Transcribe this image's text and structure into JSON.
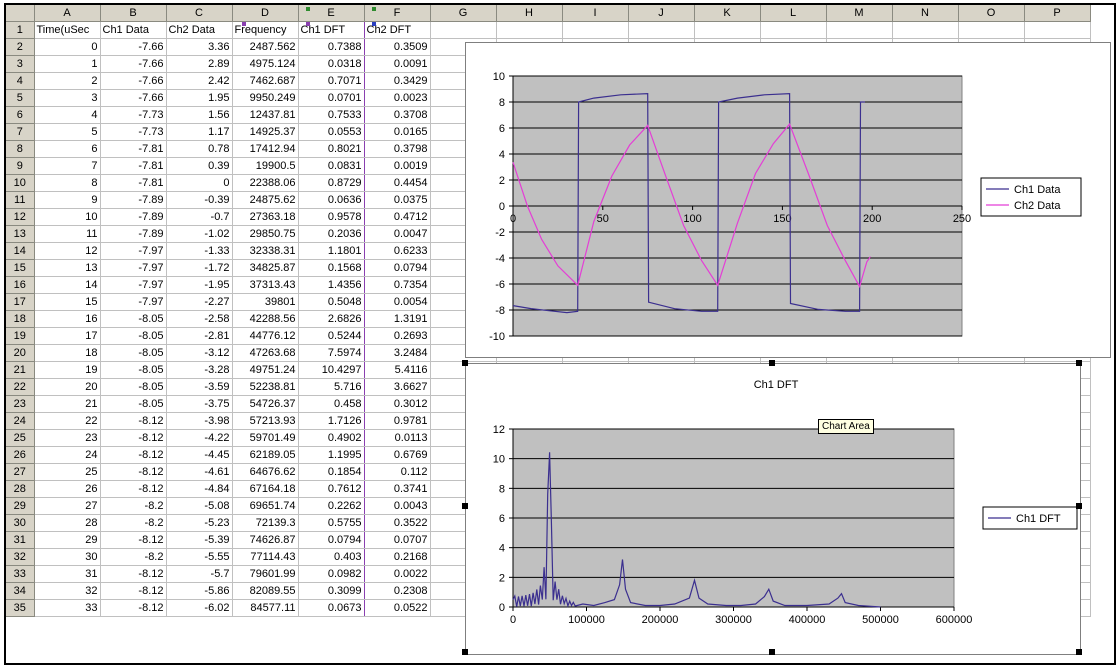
{
  "columns": [
    "A",
    "B",
    "C",
    "D",
    "E",
    "F",
    "G",
    "H",
    "I",
    "J",
    "K",
    "L",
    "M",
    "N",
    "O",
    "P"
  ],
  "header_row": [
    "Time(uSec",
    "Ch1 Data",
    "Ch2 Data",
    "Frequency",
    "Ch1 DFT",
    "Ch2 DFT"
  ],
  "rows": [
    [
      "2",
      "0",
      "-7.66",
      "3.36",
      "2487.562",
      "0.7388",
      "0.3509"
    ],
    [
      "3",
      "1",
      "-7.66",
      "2.89",
      "4975.124",
      "0.0318",
      "0.0091"
    ],
    [
      "4",
      "2",
      "-7.66",
      "2.42",
      "7462.687",
      "0.7071",
      "0.3429"
    ],
    [
      "5",
      "3",
      "-7.66",
      "1.95",
      "9950.249",
      "0.0701",
      "0.0023"
    ],
    [
      "6",
      "4",
      "-7.73",
      "1.56",
      "12437.81",
      "0.7533",
      "0.3708"
    ],
    [
      "7",
      "5",
      "-7.73",
      "1.17",
      "14925.37",
      "0.0553",
      "0.0165"
    ],
    [
      "8",
      "6",
      "-7.81",
      "0.78",
      "17412.94",
      "0.8021",
      "0.3798"
    ],
    [
      "9",
      "7",
      "-7.81",
      "0.39",
      "19900.5",
      "0.0831",
      "0.0019"
    ],
    [
      "10",
      "8",
      "-7.81",
      "0",
      "22388.06",
      "0.8729",
      "0.4454"
    ],
    [
      "11",
      "9",
      "-7.89",
      "-0.39",
      "24875.62",
      "0.0636",
      "0.0375"
    ],
    [
      "12",
      "10",
      "-7.89",
      "-0.7",
      "27363.18",
      "0.9578",
      "0.4712"
    ],
    [
      "13",
      "11",
      "-7.89",
      "-1.02",
      "29850.75",
      "0.2036",
      "0.0047"
    ],
    [
      "14",
      "12",
      "-7.97",
      "-1.33",
      "32338.31",
      "1.1801",
      "0.6233"
    ],
    [
      "15",
      "13",
      "-7.97",
      "-1.72",
      "34825.87",
      "0.1568",
      "0.0794"
    ],
    [
      "16",
      "14",
      "-7.97",
      "-1.95",
      "37313.43",
      "1.4356",
      "0.7354"
    ],
    [
      "17",
      "15",
      "-7.97",
      "-2.27",
      "39801",
      "0.5048",
      "0.0054"
    ],
    [
      "18",
      "16",
      "-8.05",
      "-2.58",
      "42288.56",
      "2.6826",
      "1.3191"
    ],
    [
      "19",
      "17",
      "-8.05",
      "-2.81",
      "44776.12",
      "0.5244",
      "0.2693"
    ],
    [
      "20",
      "18",
      "-8.05",
      "-3.12",
      "47263.68",
      "7.5974",
      "3.2484"
    ],
    [
      "21",
      "19",
      "-8.05",
      "-3.28",
      "49751.24",
      "10.4297",
      "5.4116"
    ],
    [
      "22",
      "20",
      "-8.05",
      "-3.59",
      "52238.81",
      "5.716",
      "3.6627"
    ],
    [
      "23",
      "21",
      "-8.05",
      "-3.75",
      "54726.37",
      "0.458",
      "0.3012"
    ],
    [
      "24",
      "22",
      "-8.12",
      "-3.98",
      "57213.93",
      "1.7126",
      "0.9781"
    ],
    [
      "25",
      "23",
      "-8.12",
      "-4.22",
      "59701.49",
      "0.4902",
      "0.0113"
    ],
    [
      "26",
      "24",
      "-8.12",
      "-4.45",
      "62189.05",
      "1.1995",
      "0.6769"
    ],
    [
      "27",
      "25",
      "-8.12",
      "-4.61",
      "64676.62",
      "0.1854",
      "0.112"
    ],
    [
      "28",
      "26",
      "-8.12",
      "-4.84",
      "67164.18",
      "0.7612",
      "0.3741"
    ],
    [
      "29",
      "27",
      "-8.2",
      "-5.08",
      "69651.74",
      "0.2262",
      "0.0043"
    ],
    [
      "30",
      "28",
      "-8.2",
      "-5.23",
      "72139.3",
      "0.5755",
      "0.3522"
    ],
    [
      "31",
      "29",
      "-8.12",
      "-5.39",
      "74626.87",
      "0.0794",
      "0.0707"
    ],
    [
      "32",
      "30",
      "-8.2",
      "-5.55",
      "77114.43",
      "0.403",
      "0.2168"
    ],
    [
      "33",
      "31",
      "-8.12",
      "-5.7",
      "79601.99",
      "0.0982",
      "0.0022"
    ],
    [
      "34",
      "32",
      "-8.12",
      "-5.86",
      "82089.55",
      "0.3099",
      "0.2308"
    ],
    [
      "35",
      "33",
      "-8.12",
      "-6.02",
      "84577.11",
      "0.0673",
      "0.0522"
    ]
  ],
  "chart_data": [
    {
      "type": "line",
      "title": "",
      "xlim": [
        0,
        250
      ],
      "ylim": [
        -10,
        10
      ],
      "x_ticks": [
        "0",
        "50",
        "100",
        "150",
        "200",
        "250"
      ],
      "y_ticks": [
        "10",
        "8",
        "6",
        "4",
        "2",
        "0",
        "-2",
        "-4",
        "-6",
        "-8",
        "-10"
      ],
      "legend": "right",
      "series": [
        {
          "name": "Ch1 Data",
          "color": "#3b2f8f",
          "points": [
            [
              0,
              -7.66
            ],
            [
              10,
              -7.89
            ],
            [
              20,
              -8.05
            ],
            [
              30,
              -8.2
            ],
            [
              36,
              -8.1
            ],
            [
              36.5,
              8.0
            ],
            [
              45,
              8.3
            ],
            [
              60,
              8.55
            ],
            [
              75,
              8.65
            ],
            [
              75.5,
              -7.4
            ],
            [
              90,
              -7.9
            ],
            [
              105,
              -8.1
            ],
            [
              114,
              -8.1
            ],
            [
              114.5,
              8.0
            ],
            [
              125,
              8.3
            ],
            [
              140,
              8.55
            ],
            [
              154,
              8.65
            ],
            [
              154.5,
              -7.5
            ],
            [
              170,
              -7.95
            ],
            [
              185,
              -8.1
            ],
            [
              193,
              -8.1
            ],
            [
              193.5,
              8.0
            ],
            [
              196,
              8.0
            ]
          ]
        },
        {
          "name": "Ch2 Data",
          "color": "#e43ed6",
          "points": [
            [
              0,
              3.36
            ],
            [
              8,
              0
            ],
            [
              16,
              -2.58
            ],
            [
              25,
              -4.61
            ],
            [
              36,
              -6.1
            ],
            [
              45,
              -1.2
            ],
            [
              55,
              2.3
            ],
            [
              65,
              4.7
            ],
            [
              75,
              6.2
            ],
            [
              85,
              2.3
            ],
            [
              95,
              -1.5
            ],
            [
              105,
              -4.2
            ],
            [
              114,
              -6.1
            ],
            [
              125,
              -1.3
            ],
            [
              135,
              2.5
            ],
            [
              145,
              4.8
            ],
            [
              154,
              6.3
            ],
            [
              165,
              2.3
            ],
            [
              175,
              -1.5
            ],
            [
              185,
              -4.2
            ],
            [
              193,
              -6.2
            ],
            [
              197,
              -4.3
            ],
            [
              199,
              -3.9
            ]
          ]
        }
      ]
    },
    {
      "type": "line",
      "title": "Ch1 DFT",
      "xlim": [
        0,
        600000
      ],
      "ylim": [
        0,
        12
      ],
      "x_ticks": [
        "0",
        "100000",
        "200000",
        "300000",
        "400000",
        "500000",
        "600000"
      ],
      "y_ticks": [
        "12",
        "10",
        "8",
        "6",
        "4",
        "2",
        "0"
      ],
      "legend": "right",
      "series": [
        {
          "name": "Ch1 DFT",
          "color": "#3b2f8f",
          "points": [
            [
              0,
              0.5
            ],
            [
              2487,
              0.74
            ],
            [
              4975,
              0.03
            ],
            [
              7462,
              0.71
            ],
            [
              9950,
              0.07
            ],
            [
              12437,
              0.75
            ],
            [
              14925,
              0.06
            ],
            [
              17412,
              0.8
            ],
            [
              19900,
              0.08
            ],
            [
              22388,
              0.87
            ],
            [
              24875,
              0.06
            ],
            [
              27363,
              0.96
            ],
            [
              29850,
              0.2
            ],
            [
              32338,
              1.18
            ],
            [
              34825,
              0.16
            ],
            [
              37313,
              1.44
            ],
            [
              39801,
              0.5
            ],
            [
              42288,
              2.68
            ],
            [
              44776,
              0.52
            ],
            [
              47263,
              7.6
            ],
            [
              49751,
              10.43
            ],
            [
              52238,
              5.72
            ],
            [
              54726,
              0.46
            ],
            [
              57213,
              1.71
            ],
            [
              59701,
              0.49
            ],
            [
              62189,
              1.2
            ],
            [
              64676,
              0.19
            ],
            [
              67164,
              0.76
            ],
            [
              69651,
              0.23
            ],
            [
              72139,
              0.58
            ],
            [
              74626,
              0.08
            ],
            [
              77114,
              0.4
            ],
            [
              79601,
              0.1
            ],
            [
              82089,
              0.31
            ],
            [
              84577,
              0.07
            ],
            [
              95000,
              0.2
            ],
            [
              110000,
              0.1
            ],
            [
              125000,
              0.3
            ],
            [
              138000,
              0.5
            ],
            [
              145000,
              1.5
            ],
            [
              149000,
              3.2
            ],
            [
              153000,
              1.2
            ],
            [
              160000,
              0.3
            ],
            [
              180000,
              0.1
            ],
            [
              200000,
              0.1
            ],
            [
              220000,
              0.2
            ],
            [
              240000,
              0.6
            ],
            [
              247000,
              1.8
            ],
            [
              253000,
              0.6
            ],
            [
              265000,
              0.2
            ],
            [
              290000,
              0.1
            ],
            [
              310000,
              0.1
            ],
            [
              330000,
              0.2
            ],
            [
              342000,
              0.7
            ],
            [
              348000,
              1.2
            ],
            [
              354000,
              0.4
            ],
            [
              370000,
              0.1
            ],
            [
              400000,
              0.1
            ],
            [
              430000,
              0.2
            ],
            [
              442000,
              0.6
            ],
            [
              447000,
              0.9
            ],
            [
              452000,
              0.3
            ],
            [
              470000,
              0.1
            ],
            [
              500000,
              0
            ]
          ]
        }
      ]
    }
  ],
  "tooltip": "Chart Area"
}
